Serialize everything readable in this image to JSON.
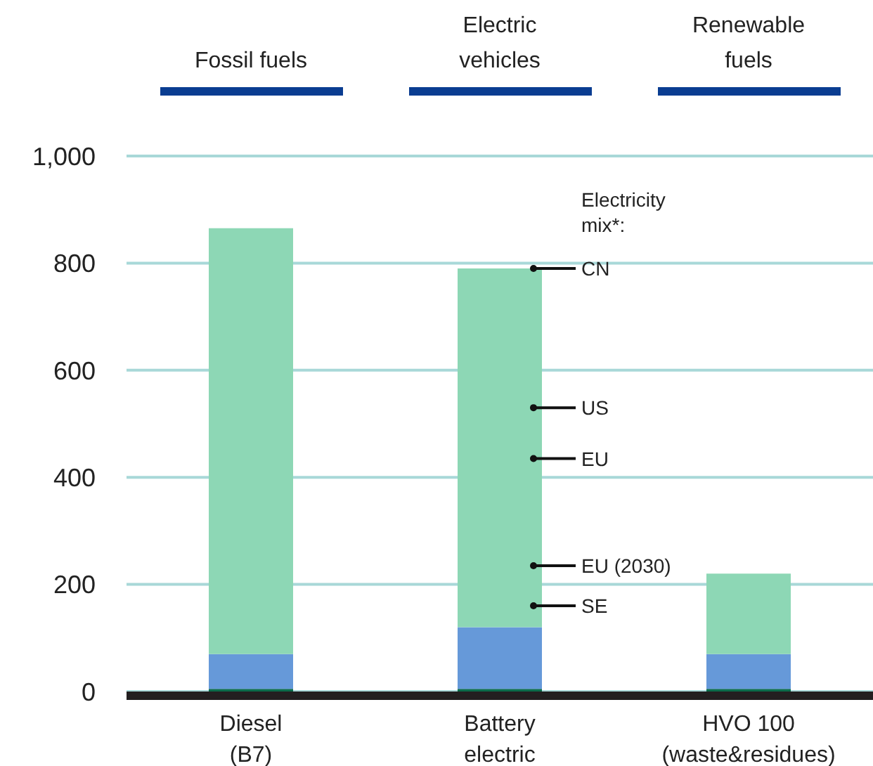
{
  "chart_data": {
    "type": "bar",
    "stacked": true,
    "categories": [
      "Diesel (B7)",
      "Battery electric",
      "HVO 100 (waste&residues)"
    ],
    "series": [
      {
        "color": "#0b6b4a",
        "values": [
          5,
          5,
          5
        ]
      },
      {
        "color": "#6699d9",
        "values": [
          65,
          115,
          65
        ]
      },
      {
        "color": "#8dd7b5",
        "values": [
          795,
          670,
          150
        ]
      },
      {
        "type": "scatter",
        "color": "#111111",
        "x": [
          "Battery electric",
          "Battery electric",
          "Battery electric",
          "Battery electric",
          "Battery electric"
        ],
        "values": [
          790,
          530,
          435,
          235,
          160
        ]
      }
    ],
    "ylim": [
      0,
      1000
    ],
    "yticks": [
      0,
      200,
      400,
      600,
      800,
      {
        "value": 1000,
        "label": "1,000"
      }
    ],
    "grid": "y",
    "legend": false,
    "marker": "circle",
    "annotations": [
      "Fossil fuels",
      "Electric vehicles",
      "Renewable fuels",
      "Electricity mix*:",
      "CN",
      "US",
      "EU",
      "EU (2030)",
      "SE"
    ]
  }
}
